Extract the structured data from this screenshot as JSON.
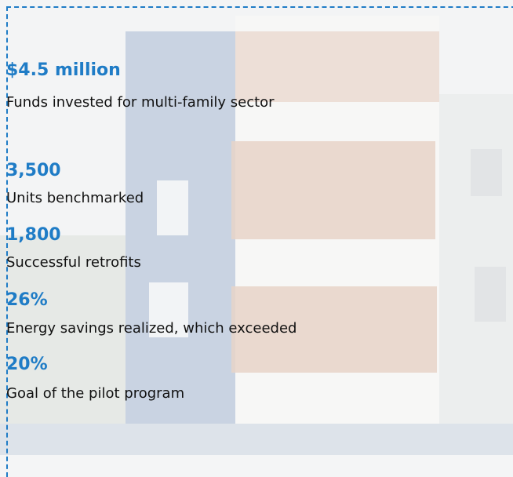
{
  "stats": [
    {
      "value": "$4.5 million",
      "label": "Funds invested for multi-family sector"
    },
    {
      "value": "3,500",
      "label": "Units benchmarked"
    },
    {
      "value": "1,800",
      "label": "Successful retrofits"
    },
    {
      "value": "26%",
      "label": "Energy savings realized, which exceeded"
    },
    {
      "value": "20%",
      "label": "Goal of the pilot program"
    }
  ]
}
